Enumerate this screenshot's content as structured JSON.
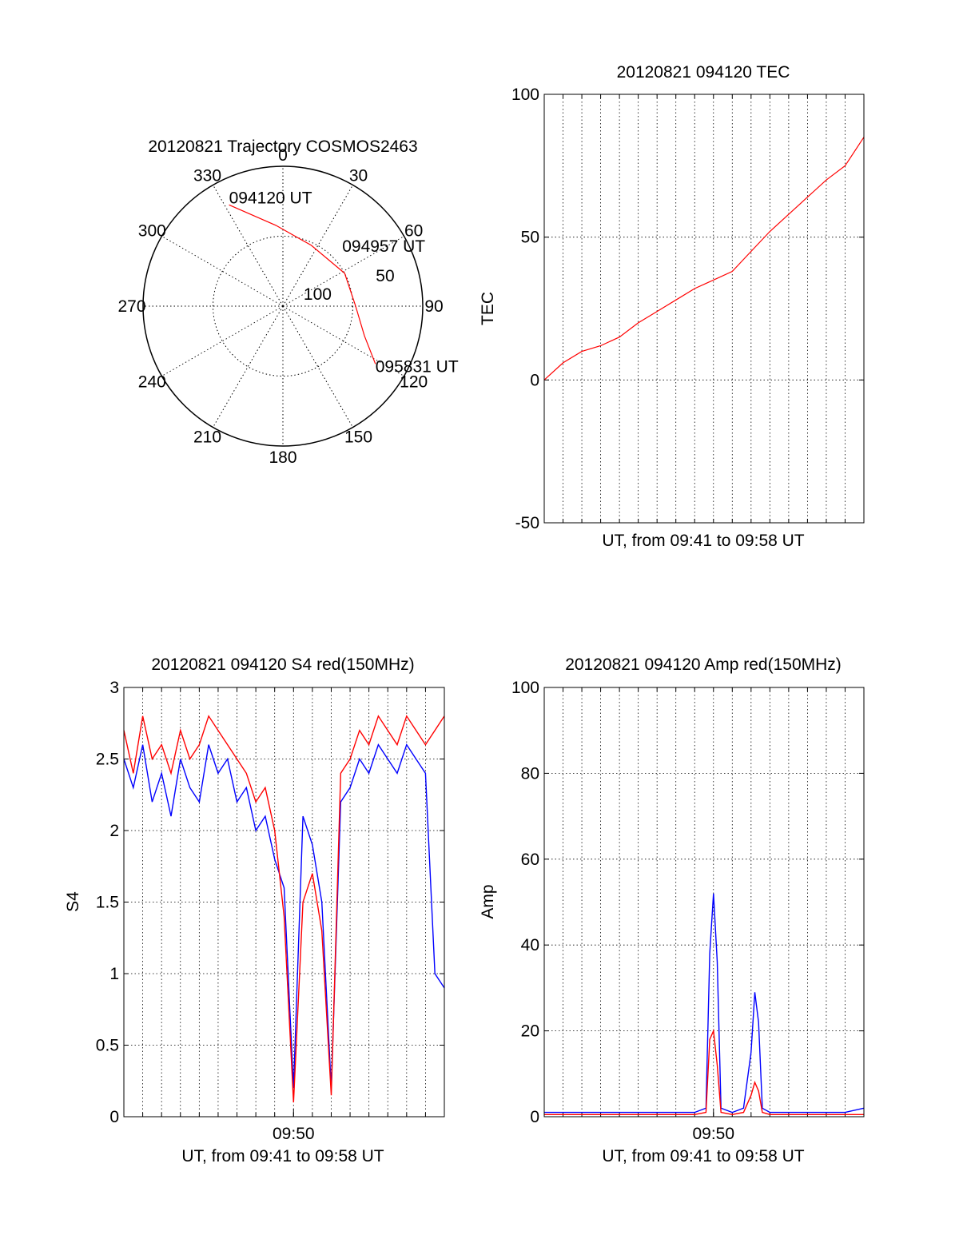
{
  "chart_data": [
    {
      "type": "polar",
      "title": "20120821 Trajectory COSMOS2463",
      "angle_labels": [
        "0",
        "30",
        "60",
        "90",
        "120",
        "150",
        "180",
        "210",
        "240",
        "270",
        "300",
        "330"
      ],
      "radial_labels": [
        "50",
        "100"
      ],
      "radial_range": [
        0,
        100
      ],
      "trajectory_color": "#ff0000",
      "trajectory": [
        {
          "azimuth": 332,
          "elevation": 18
        },
        {
          "azimuth": 355,
          "elevation": 42
        },
        {
          "azimuth": 25,
          "elevation": 52
        },
        {
          "azimuth": 62,
          "elevation": 50
        },
        {
          "azimuth": 90,
          "elevation": 48
        },
        {
          "azimuth": 110,
          "elevation": 38
        },
        {
          "azimuth": 122,
          "elevation": 22
        }
      ],
      "annotations": [
        {
          "text": "094120 UT",
          "azimuth": 332,
          "elevation": 18
        },
        {
          "text": "094957 UT",
          "azimuth": 70,
          "elevation": 50
        },
        {
          "text": "095831 UT",
          "azimuth": 122,
          "elevation": 22
        }
      ]
    },
    {
      "type": "line",
      "title": "20120821 094120 TEC",
      "xlabel": "UT, from 09:41 to 09:58 UT",
      "ylabel": "TEC",
      "xlim": [
        0,
        17
      ],
      "ylim": [
        -50,
        100
      ],
      "y_ticks": [
        -50,
        0,
        50,
        100
      ],
      "grid": true,
      "series": [
        {
          "color": "#ff0000",
          "x": [
            0,
            1,
            2,
            3,
            4,
            5,
            6,
            7,
            8,
            9,
            10,
            11,
            12,
            13,
            14,
            15,
            16,
            17
          ],
          "values": [
            0,
            6,
            10,
            12,
            15,
            20,
            24,
            28,
            32,
            35,
            38,
            45,
            52,
            58,
            64,
            70,
            75,
            85
          ]
        }
      ]
    },
    {
      "type": "line",
      "title": "20120821 094120 S4 red(150MHz)",
      "xlabel": "UT, from 09:41 to 09:58 UT",
      "ylabel": "S4",
      "xlim": [
        0,
        17
      ],
      "ylim": [
        0,
        3
      ],
      "y_ticks": [
        "0",
        "0.5",
        "1",
        "1.5",
        "2",
        "2.5",
        "3"
      ],
      "x_ticks": [
        {
          "x": 9,
          "label": "09:50"
        }
      ],
      "grid": true,
      "series": [
        {
          "color": "#0000ff",
          "x": [
            0,
            0.5,
            1,
            1.5,
            2,
            2.5,
            3,
            3.5,
            4,
            4.5,
            5,
            5.5,
            6,
            6.5,
            7,
            7.5,
            8,
            8.5,
            9,
            9.5,
            10,
            10.5,
            11,
            11.5,
            12,
            12.5,
            13,
            13.5,
            14,
            14.5,
            15,
            15.5,
            16,
            16.5,
            17
          ],
          "values": [
            2.5,
            2.3,
            2.6,
            2.2,
            2.4,
            2.1,
            2.5,
            2.3,
            2.2,
            2.6,
            2.4,
            2.5,
            2.2,
            2.3,
            2.0,
            2.1,
            1.8,
            1.6,
            0.2,
            2.1,
            1.9,
            1.5,
            0.2,
            2.2,
            2.3,
            2.5,
            2.4,
            2.6,
            2.5,
            2.4,
            2.6,
            2.5,
            2.4,
            1.0,
            0.9
          ]
        },
        {
          "color": "#ff0000",
          "x": [
            0,
            0.5,
            1,
            1.5,
            2,
            2.5,
            3,
            3.5,
            4,
            4.5,
            5,
            5.5,
            6,
            6.5,
            7,
            7.5,
            8,
            8.5,
            9,
            9.5,
            10,
            10.5,
            11,
            11.5,
            12,
            12.5,
            13,
            13.5,
            14,
            14.5,
            15,
            15.5,
            16,
            16.5,
            17
          ],
          "values": [
            2.7,
            2.4,
            2.8,
            2.5,
            2.6,
            2.4,
            2.7,
            2.5,
            2.6,
            2.8,
            2.7,
            2.6,
            2.5,
            2.4,
            2.2,
            2.3,
            2.0,
            1.4,
            0.1,
            1.5,
            1.7,
            1.3,
            0.15,
            2.4,
            2.5,
            2.7,
            2.6,
            2.8,
            2.7,
            2.6,
            2.8,
            2.7,
            2.6,
            2.7,
            2.8
          ]
        }
      ]
    },
    {
      "type": "line",
      "title": "20120821 094120 Amp red(150MHz)",
      "xlabel": "UT, from 09:41 to 09:58 UT",
      "ylabel": "Amp",
      "xlim": [
        0,
        17
      ],
      "ylim": [
        0,
        100
      ],
      "y_ticks": [
        0,
        20,
        40,
        60,
        80,
        100
      ],
      "x_ticks": [
        {
          "x": 9,
          "label": "09:50"
        }
      ],
      "grid": true,
      "series": [
        {
          "color": "#0000ff",
          "x": [
            0,
            2,
            4,
            6,
            8,
            8.6,
            8.8,
            9.0,
            9.2,
            9.4,
            10.0,
            10.6,
            11.0,
            11.2,
            11.4,
            11.6,
            12,
            14,
            16,
            17
          ],
          "values": [
            1,
            1,
            1,
            1,
            1,
            2,
            38,
            52,
            36,
            2,
            1,
            2,
            15,
            29,
            22,
            2,
            1,
            1,
            1,
            2
          ]
        },
        {
          "color": "#ff0000",
          "x": [
            0,
            2,
            4,
            6,
            8,
            8.6,
            8.8,
            9.0,
            9.2,
            9.4,
            10.0,
            10.6,
            11.0,
            11.2,
            11.4,
            11.6,
            12,
            14,
            16,
            17
          ],
          "values": [
            0.5,
            0.5,
            0.5,
            0.5,
            0.5,
            1,
            18,
            20,
            12,
            1,
            0.5,
            1,
            5,
            8,
            6,
            1,
            0.5,
            0.5,
            0.5,
            0.5
          ]
        }
      ]
    }
  ]
}
